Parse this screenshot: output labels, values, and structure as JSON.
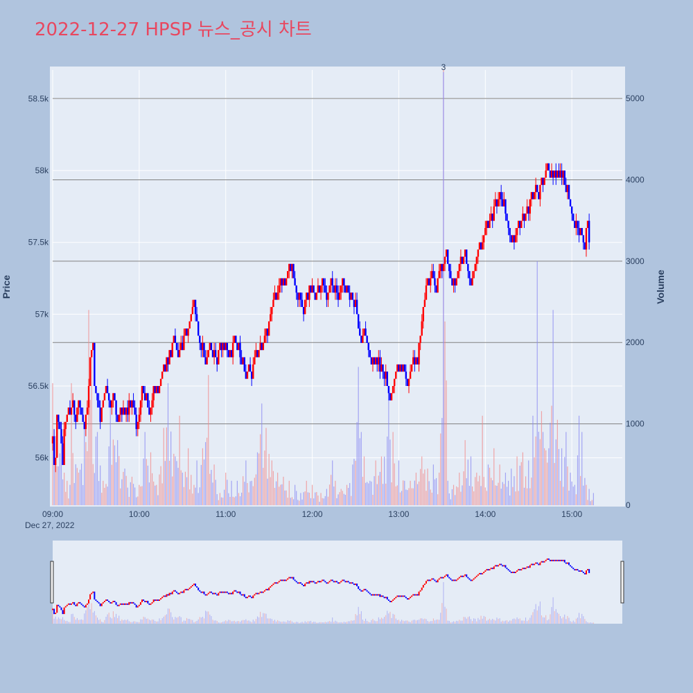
{
  "title": "2022-12-27 HPSP 뉴스_공시 차트",
  "colors": {
    "page_background": "#b0c4de",
    "plot_background": "#e5ecf6",
    "up": "#ff0000",
    "down": "#0000ff",
    "title": "#e8475f",
    "gridline": "#ffffff",
    "volume_gridline": "#808080"
  },
  "chart_data": {
    "type": "candlestick",
    "title": "2022-12-27 HPSP 뉴스_공시 차트",
    "date_label": "Dec 27, 2022",
    "y_axis": {
      "title": "Price",
      "range": [
        55670,
        58700
      ],
      "ticks": [
        {
          "value": 56000,
          "label": "56k"
        },
        {
          "value": 56500,
          "label": "56.5k"
        },
        {
          "value": 57000,
          "label": "57k"
        },
        {
          "value": 57500,
          "label": "57.5k"
        },
        {
          "value": 58000,
          "label": "58k"
        },
        {
          "value": 58500,
          "label": "58.5k"
        }
      ]
    },
    "y2_axis": {
      "title": "Volume",
      "range": [
        0,
        5350
      ],
      "ticks": [
        {
          "value": 0,
          "label": "0"
        },
        {
          "value": 1000,
          "label": "1000"
        },
        {
          "value": 2000,
          "label": "2000"
        },
        {
          "value": 3000,
          "label": "3000"
        },
        {
          "value": 4000,
          "label": "4000"
        },
        {
          "value": 5000,
          "label": "5000"
        }
      ]
    },
    "x_axis": {
      "range_minutes": [
        540,
        935
      ],
      "ticks": [
        {
          "minute": 540,
          "label": "09:00"
        },
        {
          "minute": 600,
          "label": "10:00"
        },
        {
          "minute": 660,
          "label": "11:00"
        },
        {
          "minute": 720,
          "label": "12:00"
        },
        {
          "minute": 780,
          "label": "13:00"
        },
        {
          "minute": 840,
          "label": "14:00"
        },
        {
          "minute": 900,
          "label": "15:00"
        }
      ]
    },
    "annotation": {
      "minute": 811,
      "text": "3"
    },
    "price_anchors": [
      [
        540,
        56100
      ],
      [
        541,
        55950
      ],
      [
        542,
        56000
      ],
      [
        543,
        56300
      ],
      [
        545,
        56200
      ],
      [
        546,
        56100
      ],
      [
        547,
        55950
      ],
      [
        548,
        56200
      ],
      [
        550,
        56250
      ],
      [
        553,
        56350
      ],
      [
        556,
        56300
      ],
      [
        558,
        56400
      ],
      [
        560,
        56300
      ],
      [
        562,
        56200
      ],
      [
        564,
        56350
      ],
      [
        565,
        56500
      ],
      [
        566,
        56700
      ],
      [
        568,
        56800
      ],
      [
        569,
        56500
      ],
      [
        571,
        56400
      ],
      [
        573,
        56250
      ],
      [
        575,
        56400
      ],
      [
        577,
        56500
      ],
      [
        580,
        56350
      ],
      [
        582,
        56450
      ],
      [
        585,
        56250
      ],
      [
        587,
        56350
      ],
      [
        590,
        56300
      ],
      [
        593,
        56400
      ],
      [
        596,
        56350
      ],
      [
        598,
        56200
      ],
      [
        600,
        56300
      ],
      [
        602,
        56500
      ],
      [
        604,
        56400
      ],
      [
        606,
        56350
      ],
      [
        608,
        56300
      ],
      [
        610,
        56500
      ],
      [
        614,
        56450
      ],
      [
        618,
        56650
      ],
      [
        620,
        56700
      ],
      [
        624,
        56800
      ],
      [
        628,
        56700
      ],
      [
        630,
        56800
      ],
      [
        634,
        56900
      ],
      [
        638,
        57050
      ],
      [
        642,
        56800
      ],
      [
        646,
        56650
      ],
      [
        650,
        56750
      ],
      [
        654,
        56700
      ],
      [
        658,
        56800
      ],
      [
        662,
        56700
      ],
      [
        666,
        56800
      ],
      [
        670,
        56700
      ],
      [
        674,
        56550
      ],
      [
        678,
        56600
      ],
      [
        682,
        56700
      ],
      [
        686,
        56800
      ],
      [
        690,
        56950
      ],
      [
        694,
        57100
      ],
      [
        698,
        57200
      ],
      [
        702,
        57250
      ],
      [
        706,
        57300
      ],
      [
        710,
        57100
      ],
      [
        714,
        57050
      ],
      [
        718,
        57200
      ],
      [
        722,
        57150
      ],
      [
        726,
        57200
      ],
      [
        730,
        57150
      ],
      [
        734,
        57200
      ],
      [
        738,
        57150
      ],
      [
        742,
        57200
      ],
      [
        746,
        57150
      ],
      [
        750,
        57100
      ],
      [
        752,
        56900
      ],
      [
        754,
        56800
      ],
      [
        757,
        56900
      ],
      [
        760,
        56700
      ],
      [
        764,
        56650
      ],
      [
        768,
        56600
      ],
      [
        772,
        56500
      ],
      [
        775,
        56400
      ],
      [
        778,
        56550
      ],
      [
        782,
        56650
      ],
      [
        786,
        56500
      ],
      [
        790,
        56650
      ],
      [
        793,
        56700
      ],
      [
        796,
        56950
      ],
      [
        799,
        57200
      ],
      [
        803,
        57250
      ],
      [
        806,
        57200
      ],
      [
        810,
        57300
      ],
      [
        813,
        57400
      ],
      [
        816,
        57300
      ],
      [
        819,
        57200
      ],
      [
        822,
        57350
      ],
      [
        826,
        57400
      ],
      [
        830,
        57200
      ],
      [
        834,
        57400
      ],
      [
        838,
        57500
      ],
      [
        842,
        57600
      ],
      [
        846,
        57750
      ],
      [
        850,
        57800
      ],
      [
        854,
        57700
      ],
      [
        857,
        57600
      ],
      [
        860,
        57500
      ],
      [
        864,
        57600
      ],
      [
        868,
        57700
      ],
      [
        872,
        57800
      ],
      [
        876,
        57850
      ],
      [
        880,
        57900
      ],
      [
        884,
        58000
      ],
      [
        888,
        57950
      ],
      [
        892,
        58000
      ],
      [
        895,
        57900
      ],
      [
        898,
        57800
      ],
      [
        901,
        57700
      ],
      [
        904,
        57600
      ],
      [
        907,
        57550
      ],
      [
        909,
        57500
      ],
      [
        911,
        57650
      ],
      [
        912,
        57500
      ]
    ],
    "volume_anchors": [
      [
        540,
        1500
      ],
      [
        542,
        850
      ],
      [
        546,
        800
      ],
      [
        548,
        400
      ],
      [
        550,
        300
      ],
      [
        552,
        250
      ],
      [
        553,
        1500
      ],
      [
        558,
        400
      ],
      [
        562,
        1000
      ],
      [
        565,
        2400
      ],
      [
        567,
        1850
      ],
      [
        571,
        900
      ],
      [
        575,
        300
      ],
      [
        580,
        1300
      ],
      [
        585,
        800
      ],
      [
        590,
        450
      ],
      [
        595,
        350
      ],
      [
        600,
        250
      ],
      [
        604,
        900
      ],
      [
        608,
        650
      ],
      [
        612,
        250
      ],
      [
        617,
        950
      ],
      [
        620,
        1500
      ],
      [
        625,
        600
      ],
      [
        628,
        1100
      ],
      [
        630,
        400
      ],
      [
        634,
        700
      ],
      [
        638,
        250
      ],
      [
        640,
        550
      ],
      [
        644,
        700
      ],
      [
        648,
        1600
      ],
      [
        652,
        500
      ],
      [
        656,
        150
      ],
      [
        660,
        400
      ],
      [
        664,
        300
      ],
      [
        668,
        300
      ],
      [
        674,
        550
      ],
      [
        678,
        300
      ],
      [
        682,
        650
      ],
      [
        685,
        1250
      ],
      [
        688,
        950
      ],
      [
        692,
        550
      ],
      [
        696,
        400
      ],
      [
        700,
        350
      ],
      [
        704,
        300
      ],
      [
        708,
        250
      ],
      [
        712,
        150
      ],
      [
        716,
        300
      ],
      [
        720,
        250
      ],
      [
        726,
        150
      ],
      [
        730,
        200
      ],
      [
        734,
        550
      ],
      [
        736,
        300
      ],
      [
        740,
        200
      ],
      [
        744,
        250
      ],
      [
        748,
        500
      ],
      [
        752,
        1700
      ],
      [
        756,
        600
      ],
      [
        760,
        300
      ],
      [
        764,
        550
      ],
      [
        768,
        600
      ],
      [
        773,
        1300
      ],
      [
        776,
        900
      ],
      [
        780,
        550
      ],
      [
        784,
        300
      ],
      [
        788,
        300
      ],
      [
        792,
        400
      ],
      [
        796,
        600
      ],
      [
        800,
        450
      ],
      [
        804,
        500
      ],
      [
        808,
        400
      ],
      [
        811,
        5350
      ],
      [
        814,
        300
      ],
      [
        818,
        250
      ],
      [
        822,
        400
      ],
      [
        826,
        800
      ],
      [
        830,
        600
      ],
      [
        834,
        400
      ],
      [
        838,
        1100
      ],
      [
        842,
        500
      ],
      [
        846,
        700
      ],
      [
        850,
        500
      ],
      [
        854,
        400
      ],
      [
        856,
        300
      ],
      [
        858,
        450
      ],
      [
        862,
        600
      ],
      [
        866,
        650
      ],
      [
        870,
        550
      ],
      [
        873,
        1100
      ],
      [
        876,
        3000
      ],
      [
        880,
        900
      ],
      [
        884,
        700
      ],
      [
        887,
        2400
      ],
      [
        890,
        1050
      ],
      [
        893,
        700
      ],
      [
        896,
        900
      ],
      [
        899,
        400
      ],
      [
        902,
        250
      ],
      [
        905,
        1100
      ],
      [
        907,
        900
      ],
      [
        910,
        250
      ],
      [
        912,
        200
      ],
      [
        915,
        150
      ]
    ]
  }
}
